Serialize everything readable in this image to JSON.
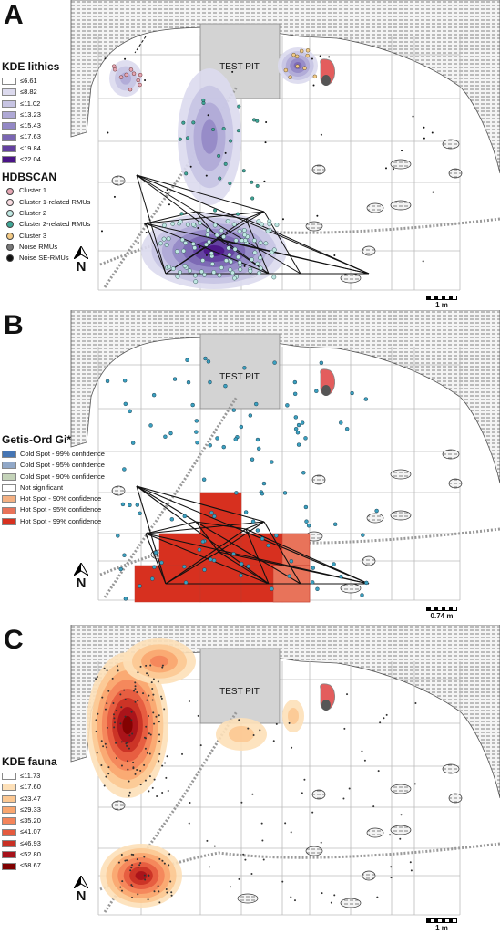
{
  "panels": {
    "a": {
      "letter": "A",
      "kde_title": "KDE lithics",
      "kde_classes": [
        {
          "label": "≤6.61",
          "color": "#ffffff"
        },
        {
          "label": "≤8.82",
          "color": "#dcdaee"
        },
        {
          "label": "≤11.02",
          "color": "#c7c4e3"
        },
        {
          "label": "≤13.23",
          "color": "#afa9d6"
        },
        {
          "label": "≤15.43",
          "color": "#9388c6"
        },
        {
          "label": "≤17.63",
          "color": "#7a66b3"
        },
        {
          "label": "≤19.84",
          "color": "#6340a0"
        },
        {
          "label": "≤22.04",
          "color": "#4a1486"
        }
      ],
      "hdbscan_title": "HDBSCAN",
      "hdbscan_classes": [
        {
          "label": "Cluster 1",
          "color": "#e6a7b4"
        },
        {
          "label": "Cluster 1-related RMUs",
          "color": "#f7dbe0"
        },
        {
          "label": "Cluster 2",
          "color": "#bfe7e2"
        },
        {
          "label": "Cluster 2-related RMUs",
          "color": "#3fa696"
        },
        {
          "label": "Cluster 3",
          "color": "#f2c985"
        },
        {
          "label": "Noise RMUs",
          "color": "#777777"
        },
        {
          "label": "Noise SE-RMUs",
          "color": "#111111"
        }
      ],
      "test_pit_label": "TEST PIT",
      "north_label": "N",
      "scale_label": "1 m"
    },
    "b": {
      "letter": "B",
      "legend_title": "Getis-Ord Gi*",
      "classes": [
        {
          "label": "Cold Spot - 99% confidence",
          "color": "#4575b4"
        },
        {
          "label": "Cold Spot - 95% confidence",
          "color": "#91a8c8"
        },
        {
          "label": "Cold Spot - 90% confidence",
          "color": "#c4d3b9"
        },
        {
          "label": "Not significant",
          "color": "#ffffff"
        },
        {
          "label": "Hot Spot - 90% confidence",
          "color": "#f4b183"
        },
        {
          "label": "Hot Spot - 95% confidence",
          "color": "#e8735a"
        },
        {
          "label": "Hot Spot - 99% confidence",
          "color": "#d7301f"
        }
      ],
      "test_pit_label": "TEST PIT",
      "north_label": "N",
      "scale_label": "0.74 m"
    },
    "c": {
      "letter": "C",
      "kde_title": "KDE fauna",
      "kde_classes": [
        {
          "label": "≤11.73",
          "color": "#ffffff"
        },
        {
          "label": "≤17.60",
          "color": "#fde0b8"
        },
        {
          "label": "≤23.47",
          "color": "#fcc892"
        },
        {
          "label": "≤29.33",
          "color": "#f9a66f"
        },
        {
          "label": "≤35.20",
          "color": "#f4845a"
        },
        {
          "label": "≤41.07",
          "color": "#e55a3e"
        },
        {
          "label": "≤46.93",
          "color": "#c93024"
        },
        {
          "label": "≤52.80",
          "color": "#a6111a"
        },
        {
          "label": "≤58.67",
          "color": "#7f0000"
        }
      ],
      "test_pit_label": "TEST PIT",
      "north_label": "N",
      "scale_label": "1 m"
    }
  }
}
